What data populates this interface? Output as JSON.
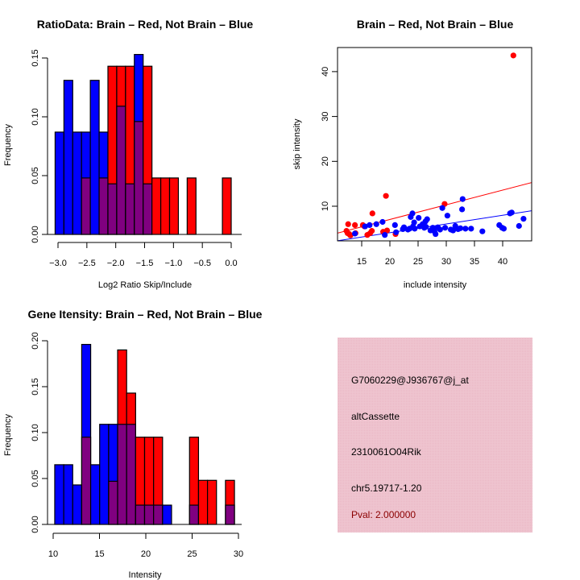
{
  "colors": {
    "brain": "#ff0000",
    "not_brain": "#0000ff",
    "overlap": "#800080",
    "panel_bg": "#efc5d0",
    "pval_text": "#8b0000"
  },
  "chart_data": [
    {
      "id": "ratio-hist",
      "type": "bar",
      "title": "RatioData: Brain – Red, Not Brain – Blue",
      "xlabel": "Log2 Ratio Skip/Include",
      "ylabel": "Frequency",
      "xlim": [
        -3.05,
        0.05
      ],
      "ylim": [
        0,
        0.15
      ],
      "xticks": [
        -3.0,
        -2.5,
        -2.0,
        -1.5,
        -1.0,
        -0.5,
        0.0
      ],
      "xtick_labels": [
        "−3.0",
        "−2.5",
        "−2.0",
        "−1.5",
        "−1.0",
        "−0.5",
        "0.0"
      ],
      "yticks": [
        0.0,
        0.05,
        0.1,
        0.15
      ],
      "ytick_labels": [
        "0.00",
        "0.05",
        "0.10",
        "0.15"
      ],
      "bin_start": -3.05,
      "bin_width": 0.1525,
      "series": [
        {
          "name": "Not Brain (Blue)",
          "values": [
            0.087,
            0.131,
            0.087,
            0.087,
            0.131,
            0.087,
            0.043,
            0.109,
            0.043,
            0.153,
            0.043,
            0,
            0,
            0,
            0,
            0,
            0,
            0,
            0,
            0
          ]
        },
        {
          "name": "Brain (Red)",
          "values": [
            0,
            0,
            0,
            0.048,
            0,
            0.048,
            0.143,
            0.143,
            0.143,
            0.096,
            0.143,
            0.048,
            0.048,
            0.048,
            0,
            0.048,
            0,
            0,
            0,
            0.048
          ]
        }
      ]
    },
    {
      "id": "scatter",
      "type": "scatter",
      "title": "Brain – Red, Not Brain – Blue",
      "xlabel": "include intensity",
      "ylabel": "skip intensity",
      "xlim": [
        10.7,
        45.2
      ],
      "ylim": [
        2.4,
        45.8
      ],
      "xticks": [
        15,
        20,
        25,
        30,
        35,
        40
      ],
      "yticks": [
        10,
        20,
        30,
        40
      ],
      "series": [
        {
          "name": "Brain (Red)",
          "points": [
            [
              12.3,
              4.5
            ],
            [
              12.5,
              4.0
            ],
            [
              12.8,
              3.8
            ],
            [
              13.0,
              3.5
            ],
            [
              12.6,
              6.0
            ],
            [
              13.8,
              5.8
            ],
            [
              15.2,
              5.8
            ],
            [
              15.5,
              5.5
            ],
            [
              13.9,
              4.0
            ],
            [
              16.8,
              4.5
            ],
            [
              16.5,
              4.0
            ],
            [
              16.0,
              3.6
            ],
            [
              16.9,
              8.4
            ],
            [
              19.3,
              12.3
            ],
            [
              18.8,
              4.3
            ],
            [
              19.5,
              4.6
            ],
            [
              21.0,
              3.8
            ],
            [
              29.7,
              10.5
            ],
            [
              41.9,
              43.6
            ]
          ],
          "fit_line": [
            [
              10.7,
              4.0
            ],
            [
              45.2,
              15.3
            ]
          ]
        },
        {
          "name": "Not Brain (Blue)",
          "points": [
            [
              13.8,
              3.9
            ],
            [
              15.6,
              5.5
            ],
            [
              16.4,
              5.8
            ],
            [
              17.6,
              6.0
            ],
            [
              18.7,
              6.5
            ],
            [
              19.1,
              3.6
            ],
            [
              20.9,
              5.8
            ],
            [
              22.3,
              4.9
            ],
            [
              23.5,
              5.0
            ],
            [
              23.7,
              7.6
            ],
            [
              24.0,
              8.4
            ],
            [
              24.3,
              6.4
            ],
            [
              24.1,
              5.5
            ],
            [
              24.4,
              5.0
            ],
            [
              23.2,
              4.8
            ],
            [
              25.1,
              7.4
            ],
            [
              25.3,
              5.5
            ],
            [
              25.8,
              6.0
            ],
            [
              26.3,
              6.6
            ],
            [
              26.6,
              7.1
            ],
            [
              26.4,
              5.4
            ],
            [
              27.2,
              4.6
            ],
            [
              27.9,
              4.4
            ],
            [
              27.6,
              5.2
            ],
            [
              28.1,
              3.8
            ],
            [
              28.5,
              5.3
            ],
            [
              28.9,
              4.8
            ],
            [
              29.3,
              9.6
            ],
            [
              29.8,
              5.2
            ],
            [
              30.2,
              7.9
            ],
            [
              30.8,
              4.8
            ],
            [
              31.2,
              4.6
            ],
            [
              31.6,
              5.6
            ],
            [
              32.1,
              4.9
            ],
            [
              32.5,
              5.1
            ],
            [
              32.9,
              11.6
            ],
            [
              32.8,
              9.3
            ],
            [
              33.4,
              5.0
            ],
            [
              34.4,
              5.0
            ],
            [
              36.4,
              4.4
            ],
            [
              39.4,
              5.8
            ],
            [
              39.9,
              5.2
            ],
            [
              40.2,
              5.0
            ],
            [
              41.3,
              8.4
            ],
            [
              41.6,
              8.6
            ],
            [
              42.9,
              5.6
            ],
            [
              43.7,
              7.2
            ],
            [
              26.1,
              5.2
            ],
            [
              22.5,
              5.3
            ],
            [
              21.1,
              4.2
            ]
          ],
          "fit_line": [
            [
              10.7,
              2.3
            ],
            [
              45.2,
              9.0
            ]
          ]
        }
      ]
    },
    {
      "id": "intensity-hist",
      "type": "bar",
      "title": "Gene Itensity: Brain – Red, Not Brain – Blue",
      "xlabel": "Intensity",
      "ylabel": "Frequency",
      "xlim": [
        10.17,
        29.57
      ],
      "ylim": [
        0,
        0.2
      ],
      "xticks": [
        10,
        15,
        20,
        25,
        30
      ],
      "xtick_labels": [
        "10",
        "15",
        "20",
        "25",
        "30"
      ],
      "yticks": [
        0.0,
        0.05,
        0.1,
        0.15,
        0.2
      ],
      "ytick_labels": [
        "0.00",
        "0.05",
        "0.10",
        "0.15",
        "0.20"
      ],
      "bin_start": 10.17,
      "bin_width": 0.97,
      "series": [
        {
          "name": "Not Brain (Blue)",
          "values": [
            0.065,
            0.065,
            0.043,
            0.196,
            0.065,
            0.109,
            0.109,
            0.109,
            0.109,
            0.021,
            0.021,
            0.021,
            0.021,
            0,
            0,
            0.021,
            0,
            0,
            0,
            0.021
          ]
        },
        {
          "name": "Brain (Red)",
          "values": [
            0,
            0,
            0,
            0.095,
            0,
            0,
            0.047,
            0.19,
            0.143,
            0.095,
            0.095,
            0.095,
            0,
            0,
            0,
            0.095,
            0.048,
            0.048,
            0,
            0.048
          ]
        }
      ]
    }
  ],
  "info_panel": {
    "probe_id": "G7060229@J936767@j_at",
    "event_type": "altCassette",
    "gene": "2310061O04Rik",
    "location": "chr5.19717-1.20",
    "pval": "Pval: 2.000000"
  }
}
